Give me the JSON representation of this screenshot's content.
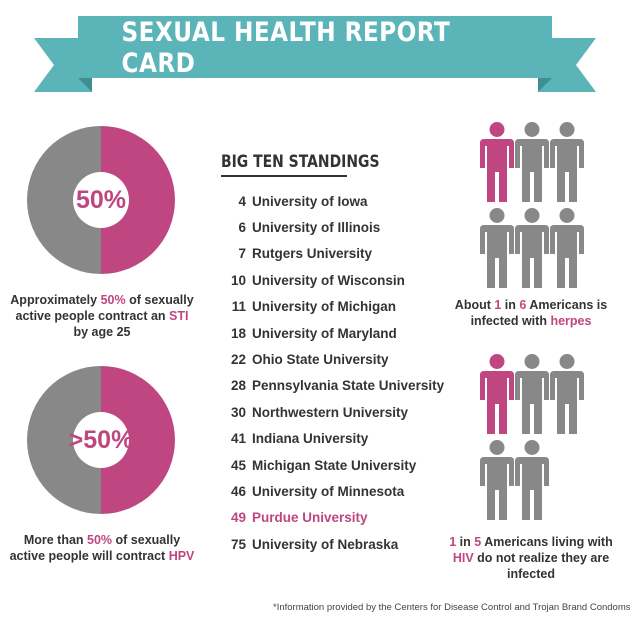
{
  "colors": {
    "teal": "#5bb5b8",
    "teal_dark": "#3f8f92",
    "magenta": "#bf4680",
    "gray": "#888888",
    "text": "#333333"
  },
  "banner": {
    "title": "SEXUAL HEALTH REPORT CARD"
  },
  "sti": {
    "percent_label": "50%",
    "fraction": 0.5,
    "caption_pre": "Approximately ",
    "caption_hl1": "50%",
    "caption_mid": " of sexually active people contract an ",
    "caption_hl2": "STI",
    "caption_post": " by age 25"
  },
  "hpv": {
    "percent_label": ">50%",
    "fraction": 0.5,
    "caption_pre": "More than ",
    "caption_hl1": "50%",
    "caption_mid": " of sexually active people will contract ",
    "caption_hl2": "HPV"
  },
  "standings": {
    "title": "BIG TEN STANDINGS",
    "rows": [
      {
        "rank": "4",
        "name": "University of Iowa"
      },
      {
        "rank": "6",
        "name": "University of Illinois"
      },
      {
        "rank": "7",
        "name": "Rutgers University"
      },
      {
        "rank": "10",
        "name": "University of Wisconsin"
      },
      {
        "rank": "11",
        "name": "University of Michigan"
      },
      {
        "rank": "18",
        "name": "University of Maryland"
      },
      {
        "rank": "22",
        "name": "Ohio State University"
      },
      {
        "rank": "28",
        "name": "Pennsylvania State University"
      },
      {
        "rank": "30",
        "name": "Northwestern University"
      },
      {
        "rank": "41",
        "name": "Indiana University"
      },
      {
        "rank": "45",
        "name": "Michigan State University"
      },
      {
        "rank": "46",
        "name": "University of Minnesota"
      },
      {
        "rank": "49",
        "name": "Purdue University",
        "highlight": true
      },
      {
        "rank": "75",
        "name": "University of Nebraska"
      }
    ]
  },
  "herpes": {
    "highlighted": 1,
    "total": 6,
    "text_pre": "About ",
    "text_hl1": "1",
    "text_mid1": " in ",
    "text_hl2": "6",
    "text_mid2": " Americans is infected with ",
    "text_hl3": "herpes"
  },
  "hiv": {
    "highlighted": 1,
    "total": 5,
    "text_hl1": "1",
    "text_mid1": " in ",
    "text_hl2": "5",
    "text_mid2": " Americans living with ",
    "text_hl3": "HIV",
    "text_post": " do not realize they are infected"
  },
  "footnote": "*Information provided by the Centers for Disease Control and Trojan Brand Condoms"
}
